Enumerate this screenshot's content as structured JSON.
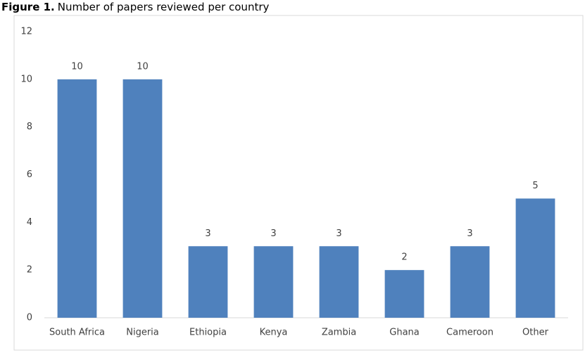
{
  "chart_data": {
    "type": "bar",
    "title_label": "Figure 1.",
    "title": "Number of papers reviewed per country",
    "categories": [
      "South Africa",
      "Nigeria",
      "Ethiopia",
      "Kenya",
      "Zambia",
      "Ghana",
      "Cameroon",
      "Other"
    ],
    "values": [
      10,
      10,
      3,
      3,
      3,
      2,
      3,
      5
    ],
    "color": "#4f81bd",
    "ylim": [
      0,
      12
    ],
    "yticks": [
      0,
      2,
      4,
      6,
      8,
      10,
      12
    ],
    "grid": false,
    "data_labels": true
  }
}
